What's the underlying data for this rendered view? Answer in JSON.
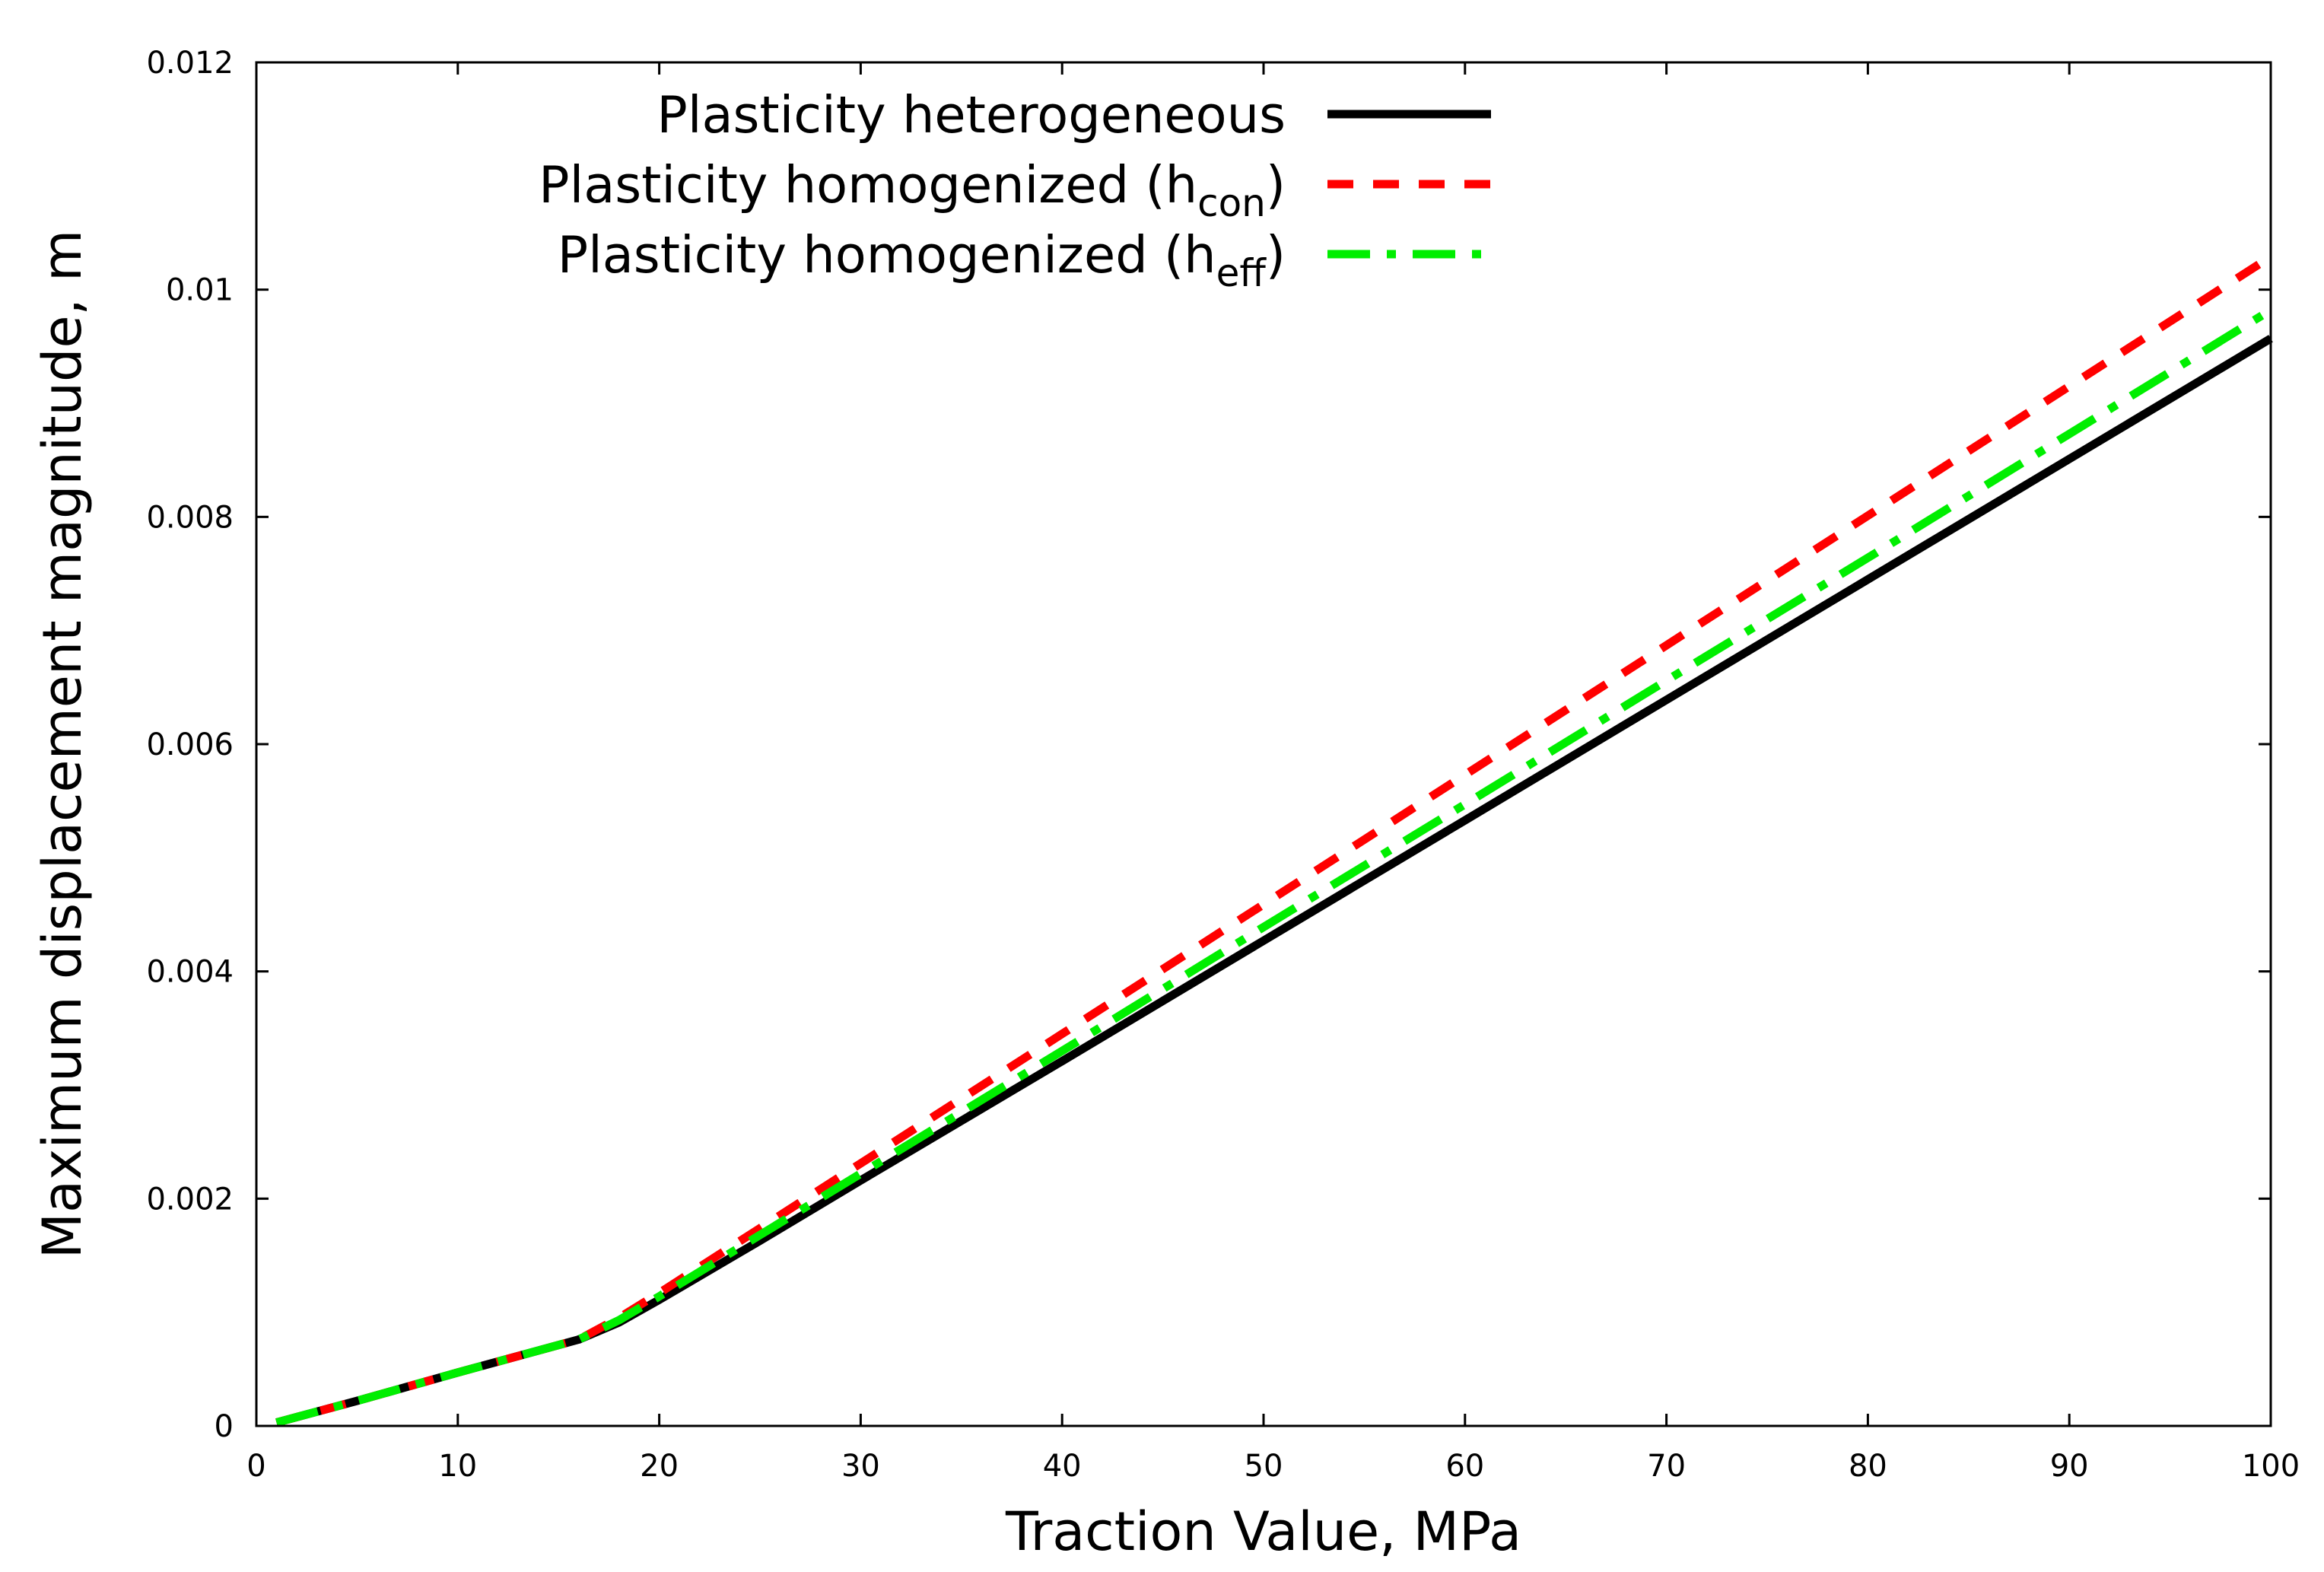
{
  "chart_data": {
    "type": "line",
    "title": "",
    "xlabel": "Traction Value, MPa",
    "ylabel": "Maximum displacement magnitude, m",
    "xlim": [
      0,
      100
    ],
    "ylim": [
      0,
      0.012
    ],
    "xticks": [
      0,
      10,
      20,
      30,
      40,
      50,
      60,
      70,
      80,
      90,
      100
    ],
    "xtick_labels": [
      "0",
      "10",
      "20",
      "30",
      "40",
      "50",
      "60",
      "70",
      "80",
      "90",
      "100"
    ],
    "yticks": [
      0,
      0.002,
      0.004,
      0.006,
      0.008,
      0.01,
      0.012
    ],
    "ytick_labels": [
      "0",
      "0.002",
      "0.004",
      "0.006",
      "0.008",
      "0.01",
      "0.012"
    ],
    "grid": false,
    "legend_position": "top-left",
    "series": [
      {
        "name": "Plasticity heterogeneous",
        "label_main": "Plasticity heterogeneous",
        "label_sub": "",
        "label_close": "",
        "color": "#000000",
        "style": "solid",
        "x": [
          1,
          5,
          10,
          16,
          18,
          20,
          25,
          30,
          40,
          50,
          60,
          70,
          80,
          90,
          100
        ],
        "y": [
          3e-05,
          0.00022,
          0.00047,
          0.00076,
          0.00091,
          0.00111,
          0.00163,
          0.00216,
          0.00321,
          0.00427,
          0.00533,
          0.00639,
          0.00745,
          0.00851,
          0.00957
        ]
      },
      {
        "name": "Plasticity homogenized (hcon)",
        "label_main": "Plasticity homogenized (h",
        "label_sub": "con",
        "label_close": ")",
        "color": "#ff0000",
        "style": "dashed",
        "x": [
          1,
          5,
          10,
          16,
          18,
          20,
          25,
          30,
          40,
          50,
          60,
          70,
          80,
          90,
          100
        ],
        "y": [
          3e-05,
          0.00022,
          0.00047,
          0.00076,
          0.00095,
          0.00117,
          0.00174,
          0.00231,
          0.00345,
          0.00459,
          0.00573,
          0.00687,
          0.00801,
          0.00915,
          0.01029
        ]
      },
      {
        "name": "Plasticity homogenized (heff)",
        "label_main": "Plasticity homogenized (h",
        "label_sub": "eff",
        "label_close": ")",
        "color": "#00ee00",
        "style": "dashdot",
        "x": [
          1,
          5,
          10,
          16,
          18,
          20,
          25,
          30,
          40,
          50,
          60,
          70,
          80,
          90,
          100
        ],
        "y": [
          3e-05,
          0.00022,
          0.00047,
          0.00076,
          0.00093,
          0.00114,
          0.00168,
          0.00222,
          0.0033,
          0.00439,
          0.00547,
          0.00656,
          0.00764,
          0.00873,
          0.00982
        ]
      }
    ]
  }
}
